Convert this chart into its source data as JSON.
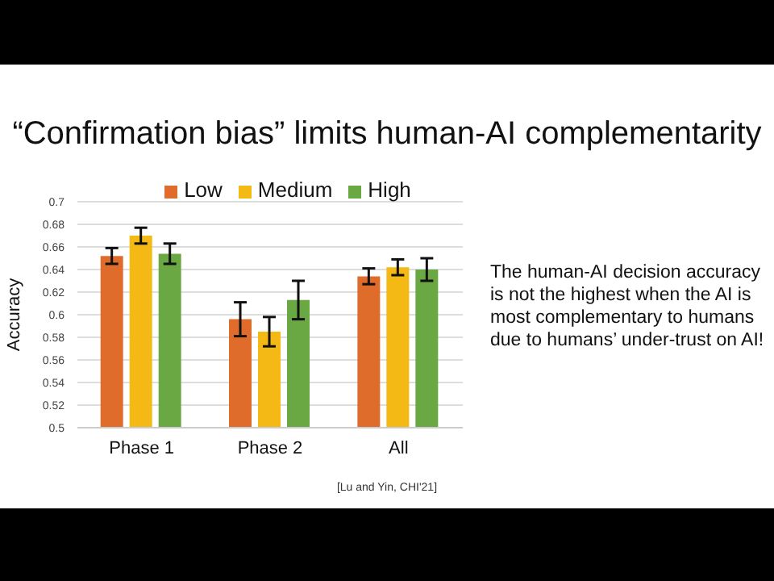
{
  "chart_data": {
    "type": "bar",
    "title": "“Confirmation bias” limits human-AI complementarity",
    "ylabel": "Accuracy",
    "categories": [
      "Phase 1",
      "Phase 2",
      "All"
    ],
    "series": [
      {
        "name": "Low",
        "color": "#e06c2c",
        "values": [
          0.652,
          0.596,
          0.634
        ],
        "errors": [
          0.007,
          0.015,
          0.007
        ]
      },
      {
        "name": "Medium",
        "color": "#f4b914",
        "values": [
          0.67,
          0.585,
          0.642
        ],
        "errors": [
          0.007,
          0.013,
          0.007
        ]
      },
      {
        "name": "High",
        "color": "#6aa843",
        "values": [
          0.654,
          0.613,
          0.64
        ],
        "errors": [
          0.009,
          0.017,
          0.01
        ]
      }
    ],
    "ylim": [
      0.5,
      0.7
    ],
    "yticks": [
      0.5,
      0.52,
      0.54,
      0.56,
      0.58,
      0.6,
      0.62,
      0.64,
      0.66,
      0.68,
      0.7
    ],
    "grid": "y",
    "legend": "top",
    "annotations": [
      "The human-AI decision accuracy is not the highest when the AI is most complementary to humans due to humans’ under-trust on AI!",
      "[Lu and Yin, CHI'21]"
    ]
  }
}
